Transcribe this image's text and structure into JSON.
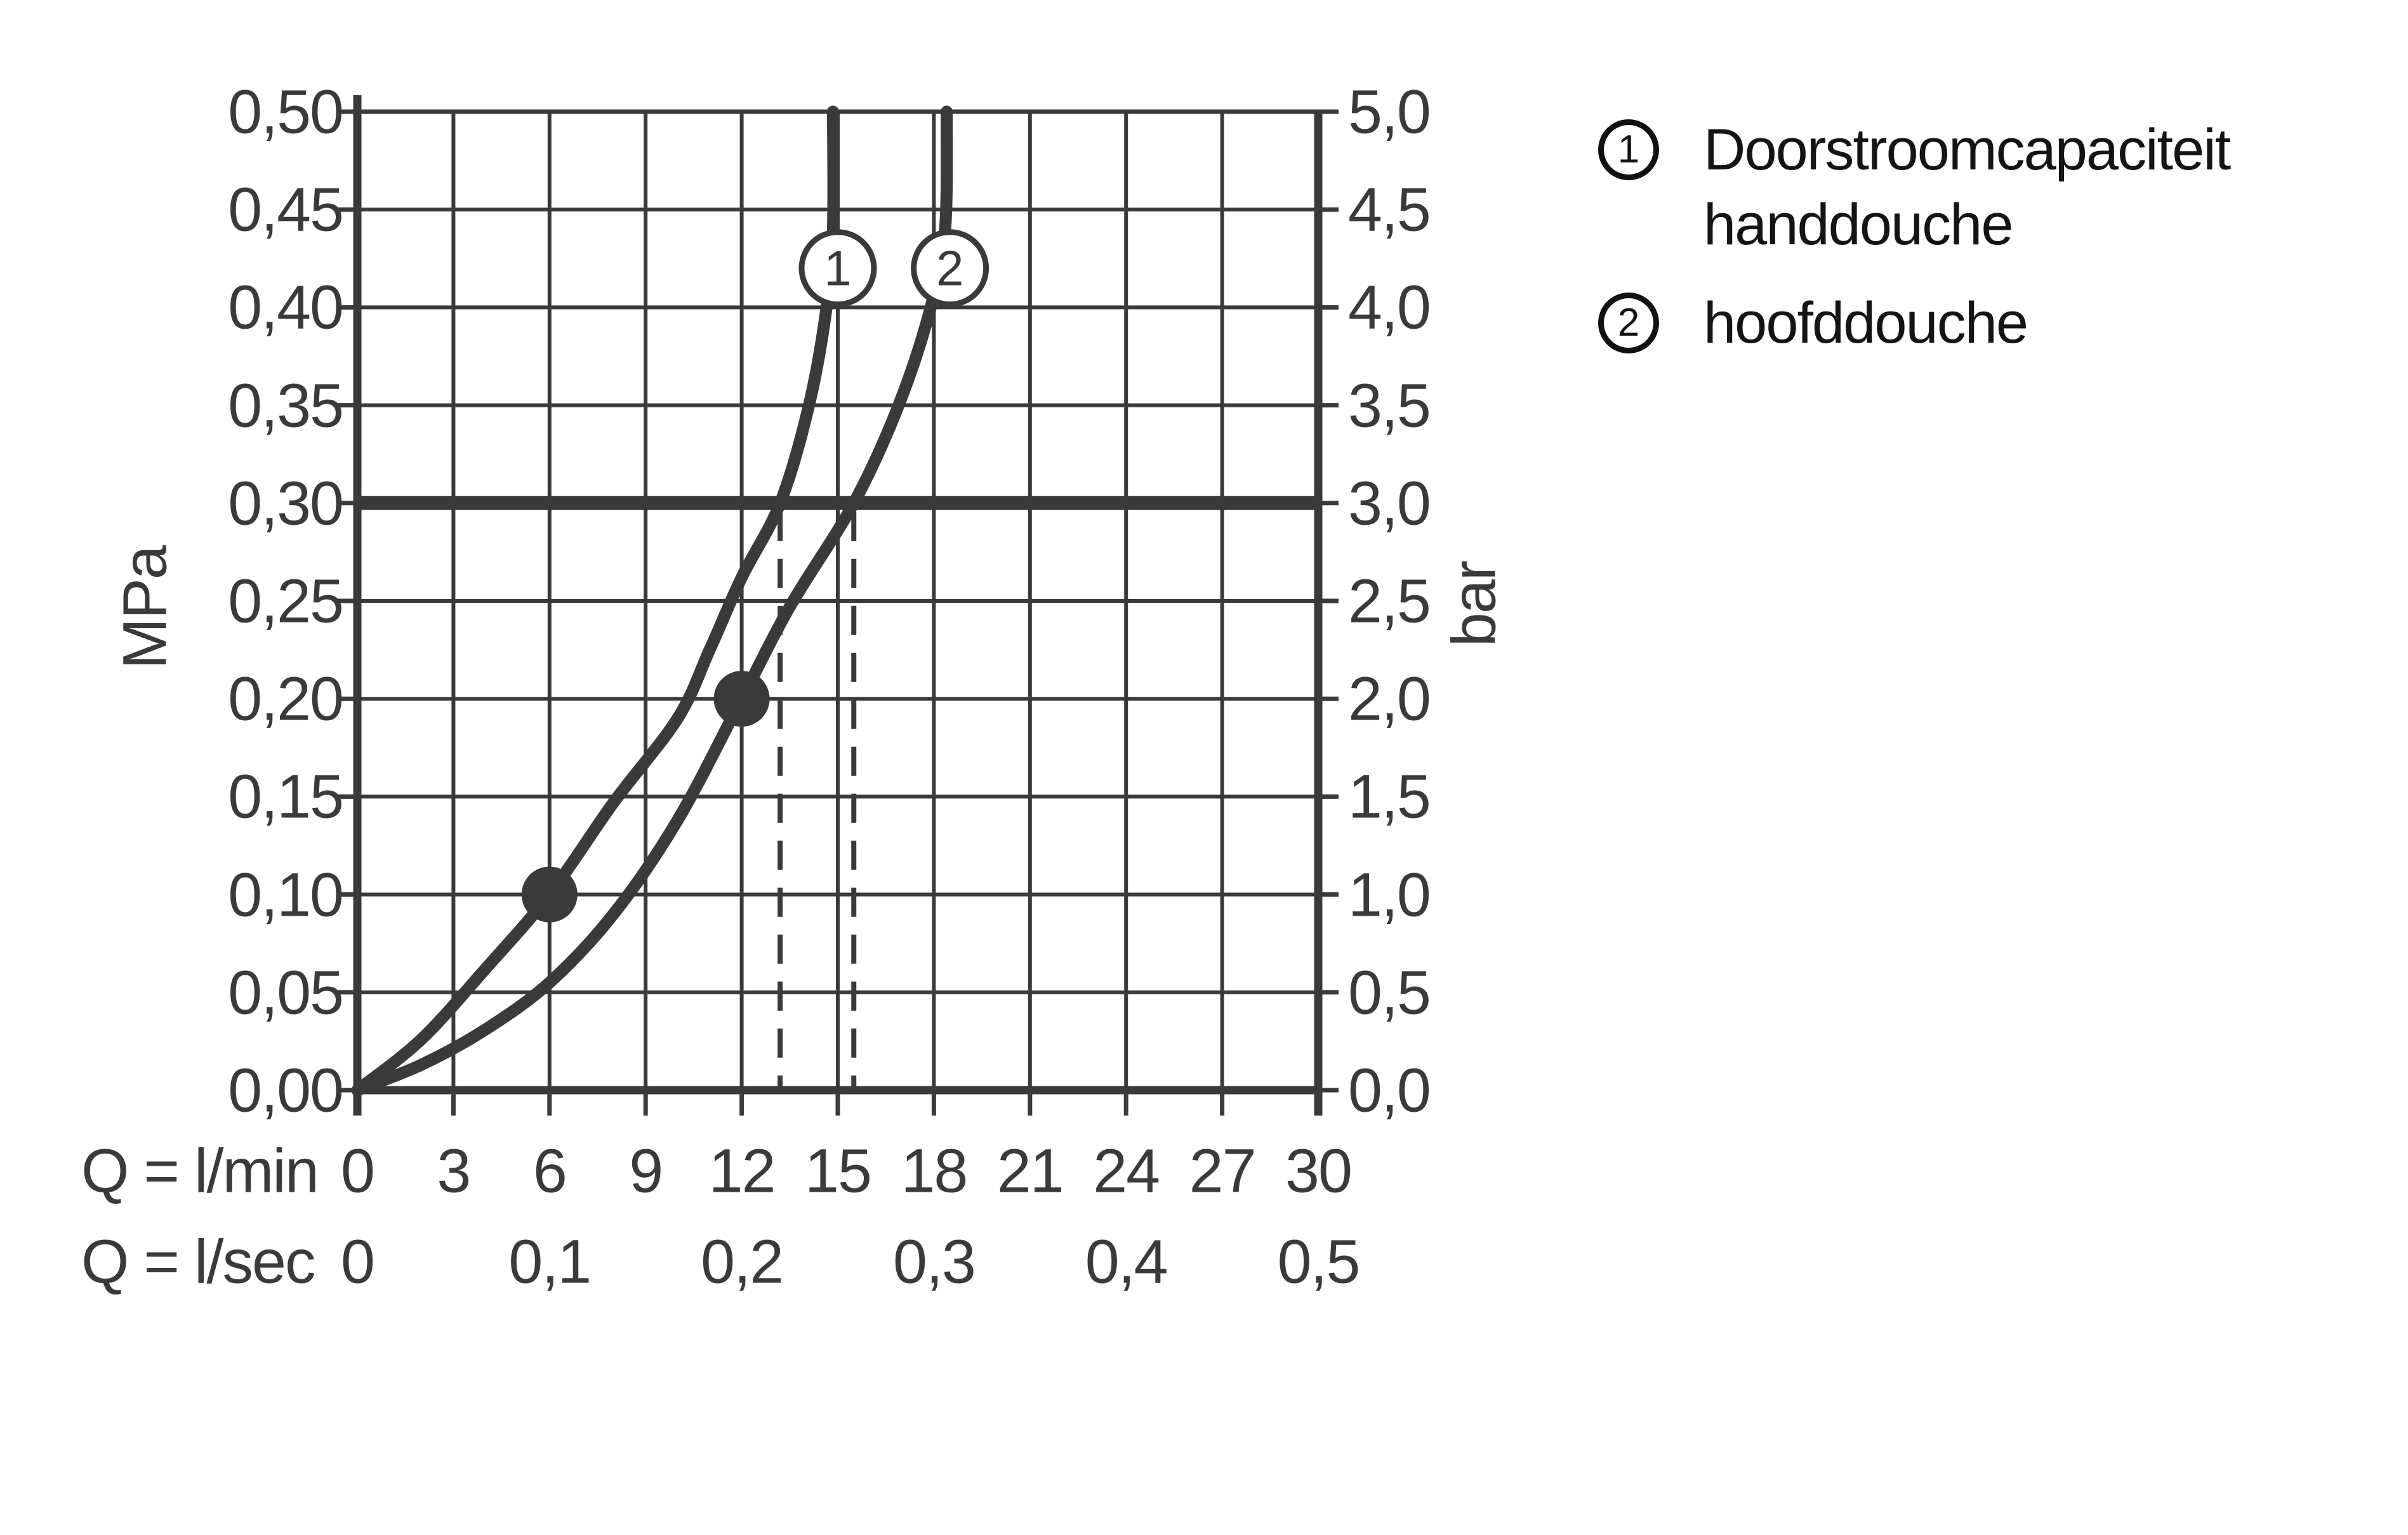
{
  "chart_data": {
    "type": "line",
    "description": "Shower flow capacity diagram: pressure (MPa/bar) versus flow rate Q (l/min and l/sec)",
    "grid": true,
    "x_axis": {
      "row1_label": "Q = l/min",
      "row1_ticks": [
        "0",
        "3",
        "6",
        "9",
        "12",
        "15",
        "18",
        "21",
        "24",
        "27",
        "30"
      ],
      "row1_tick_values_lmin": [
        0,
        3,
        6,
        9,
        12,
        15,
        18,
        21,
        24,
        27,
        30
      ],
      "row2_label": "Q = l/sec",
      "row2_ticks": [
        "0",
        "0,1",
        "0,2",
        "0,3",
        "0,4",
        "0,5"
      ],
      "row2_tick_positions_lmin": [
        0,
        6,
        12,
        18,
        24,
        30
      ],
      "range_lmin": [
        0,
        30
      ]
    },
    "y_axis_left": {
      "unit": "MPa",
      "ticks_top_to_bottom": [
        "0,50",
        "0,45",
        "0,40",
        "0,35",
        "0,30",
        "0,25",
        "0,20",
        "0,15",
        "0,10",
        "0,05",
        "0,00"
      ],
      "range_mpa": [
        0,
        0.5
      ]
    },
    "y_axis_right": {
      "unit": "bar",
      "ticks_top_to_bottom": [
        "5,0",
        "4,5",
        "4,0",
        "3,5",
        "3,0",
        "2,5",
        "2,0",
        "1,5",
        "1,0",
        "0,5",
        "0,0"
      ],
      "range_bar": [
        0,
        5
      ]
    },
    "reference_line": {
      "value_mpa": 0.3,
      "value_bar": 3.0
    },
    "dashed_guides_lmin": [
      13.2,
      15.5
    ],
    "series": [
      {
        "id": "1",
        "name": "Doorstroomcapaciteit handdouche",
        "points_q_lmin_vs_p_mpa": [
          [
            0,
            0
          ],
          [
            2,
            0.026
          ],
          [
            4,
            0.062
          ],
          [
            6,
            0.1
          ],
          [
            8,
            0.147
          ],
          [
            10,
            0.19
          ],
          [
            11,
            0.225
          ],
          [
            12,
            0.262
          ],
          [
            13.2,
            0.3
          ],
          [
            14.1,
            0.35
          ],
          [
            14.65,
            0.4
          ],
          [
            14.85,
            0.44
          ],
          [
            14.85,
            0.5
          ]
        ],
        "marker_point": [
          6,
          0.1
        ],
        "crossing_at_3bar_lmin": 13.2
      },
      {
        "id": "2",
        "name": "hoofddouche",
        "points_q_lmin_vs_p_mpa": [
          [
            0,
            0
          ],
          [
            2,
            0.013
          ],
          [
            4,
            0.031
          ],
          [
            6,
            0.055
          ],
          [
            8,
            0.09
          ],
          [
            10,
            0.138
          ],
          [
            12,
            0.2
          ],
          [
            13.5,
            0.247
          ],
          [
            15.5,
            0.3
          ],
          [
            16.9,
            0.35
          ],
          [
            17.9,
            0.4
          ],
          [
            18.35,
            0.44
          ],
          [
            18.4,
            0.5
          ]
        ],
        "marker_point": [
          12,
          0.2
        ],
        "crossing_at_3bar_lmin": 15.5
      }
    ],
    "curve_labels": [
      {
        "text": "1",
        "at_q_lmin": 15.0,
        "at_p_mpa": 0.42
      },
      {
        "text": "2",
        "at_q_lmin": 18.5,
        "at_p_mpa": 0.42
      }
    ]
  },
  "legend": {
    "items": [
      {
        "symbol": "1",
        "lines": [
          "Doorstroomcapaciteit",
          "handdouche"
        ]
      },
      {
        "symbol": "2",
        "lines": [
          "hoofddouche"
        ]
      }
    ]
  },
  "colors": {
    "ink": "#3a3a3a",
    "axis_text": "#3a3a3a",
    "legend_text": "#141414",
    "background": "#ffffff"
  }
}
